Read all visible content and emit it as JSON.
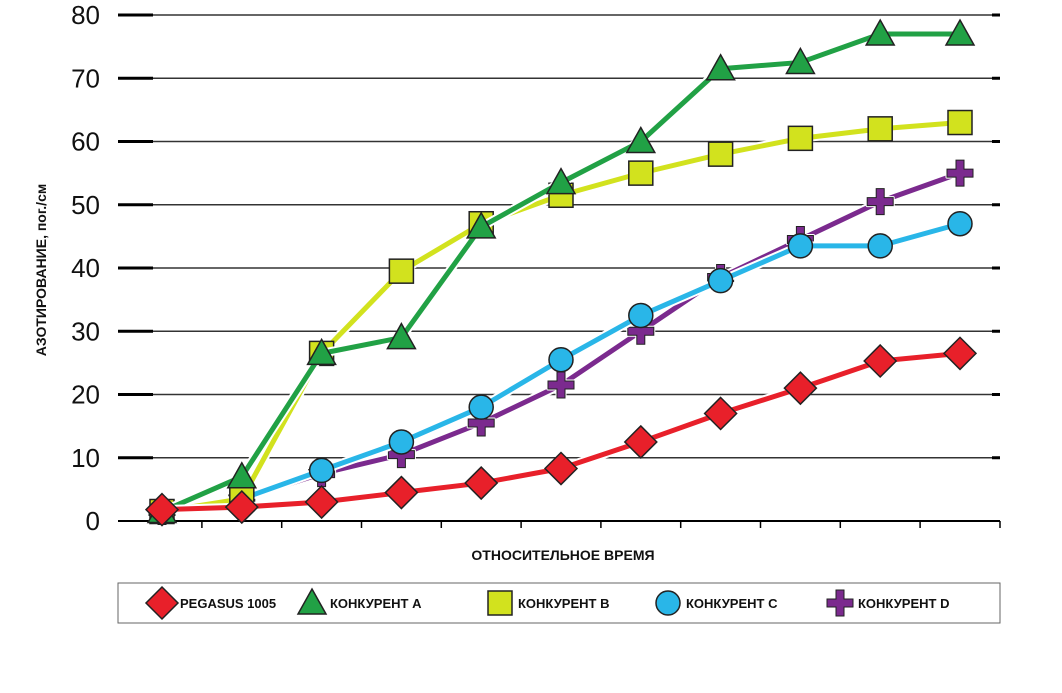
{
  "chart_data": {
    "type": "line",
    "xlabel": "ОТНОСИТЕЛЬНОЕ ВРЕМЯ",
    "ylabel": "АЗОТИРОВАНИЕ, пог./см",
    "ylim": [
      0,
      80
    ],
    "yticks": [
      "0",
      "10",
      "20",
      "30",
      "40",
      "50",
      "60",
      "70",
      "80"
    ],
    "grid": true,
    "legend_position": "bottom",
    "series": [
      {
        "name": "PEGASUS 1005",
        "marker": "diamond",
        "color": "#e8202a",
        "values": [
          1.8,
          2.2,
          3,
          4.5,
          6,
          8.3,
          12.5,
          17,
          21,
          25.3,
          26.5
        ]
      },
      {
        "name": "КОНКУРЕНТ А",
        "marker": "triangle",
        "color": "#21a145",
        "values": [
          1.5,
          7,
          26.5,
          29,
          46.5,
          53.5,
          60,
          71.5,
          72.5,
          77,
          77
        ]
      },
      {
        "name": "КОНКУРЕНТ В",
        "marker": "square",
        "color": "#d2e21e",
        "values": [
          1.5,
          3.5,
          26.5,
          39.5,
          47,
          51.5,
          55,
          58,
          60.5,
          62,
          63
        ]
      },
      {
        "name": "КОНКУРЕНТ С",
        "marker": "circle",
        "color": "#29b6e8",
        "values": [
          1.5,
          3.5,
          8,
          12.5,
          18,
          25.5,
          32.5,
          38,
          43.5,
          43.5,
          47
        ]
      },
      {
        "name": "КОНКУРЕНТ D",
        "marker": "cross",
        "color": "#7b2a8e",
        "values": [
          1.5,
          3.5,
          7.5,
          10.5,
          15.5,
          21.5,
          30,
          38.5,
          44.5,
          50.5,
          55
        ]
      }
    ]
  }
}
